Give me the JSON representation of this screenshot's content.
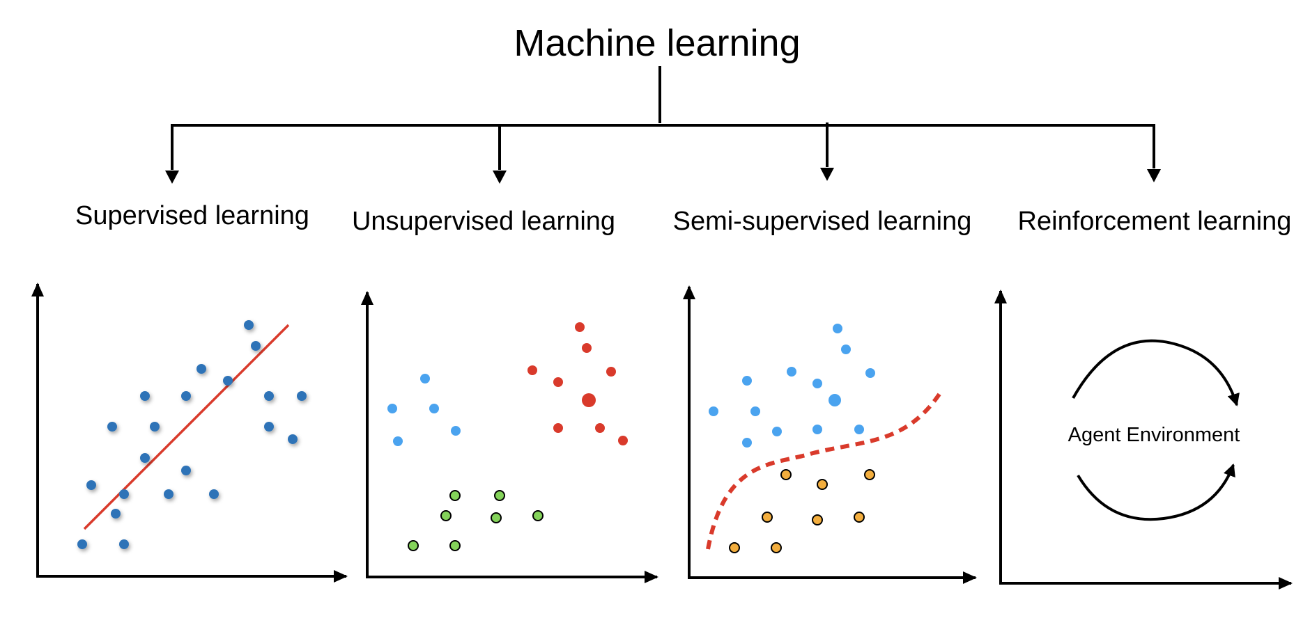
{
  "title": "Machine learning",
  "categories": {
    "supervised": "Supervised learning",
    "unsupervised": "Unsupervised learning",
    "semi_supervised": "Semi-supervised learning",
    "reinforcement": "Reinforcement learning"
  },
  "reinforcement_panel": {
    "label": "Agent Environment"
  },
  "colors": {
    "blue_point": "#2f73b7",
    "light_blue_point": "#4aa3ef",
    "red": "#d93a2b",
    "green_point": "#84d35a",
    "orange_point": "#f3ae3e",
    "line": "#000000"
  }
}
